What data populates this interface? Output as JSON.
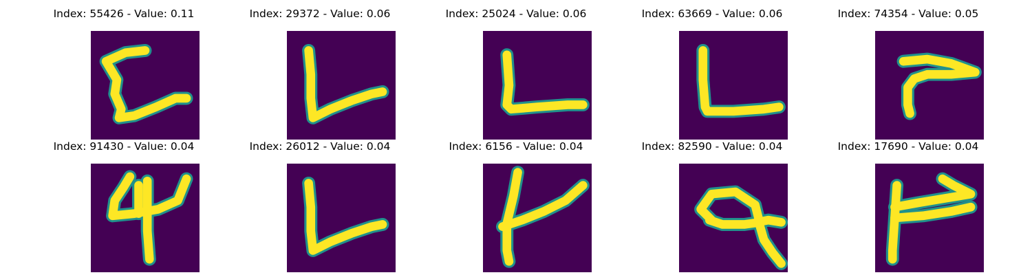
{
  "figure": {
    "background_color": "#ffffff",
    "image_background_color": "#440154",
    "stroke_edge_color": "#21918c",
    "stroke_color": "#fde725"
  },
  "chart_data": {
    "type": "image_grid",
    "grid": {
      "rows": 2,
      "cols": 5
    },
    "panels": [
      {
        "title": "Index: 55426 - Value: 0.11",
        "index": 55426,
        "value": 0.11,
        "glyph": "c-shape"
      },
      {
        "title": "Index: 29372 - Value: 0.06",
        "index": 29372,
        "value": 0.06,
        "glyph": "l-shape"
      },
      {
        "title": "Index: 25024 - Value: 0.06",
        "index": 25024,
        "value": 0.06,
        "glyph": "l-shape-thick"
      },
      {
        "title": "Index: 63669 - Value: 0.06",
        "index": 63669,
        "value": 0.06,
        "glyph": "l-shape-upright"
      },
      {
        "title": "Index: 74354 - Value: 0.05",
        "index": 74354,
        "value": 0.05,
        "glyph": "hook-shape"
      },
      {
        "title": "Index: 91430 - Value: 0.04",
        "index": 91430,
        "value": 0.04,
        "glyph": "digit-4-shape"
      },
      {
        "title": "Index: 26012 - Value: 0.04",
        "index": 26012,
        "value": 0.04,
        "glyph": "l-shape"
      },
      {
        "title": "Index: 6156 - Value: 0.04",
        "index": 6156,
        "value": 0.04,
        "glyph": "t-branch-shape"
      },
      {
        "title": "Index: 82590 - Value: 0.04",
        "index": 82590,
        "value": 0.04,
        "glyph": "loop-shape"
      },
      {
        "title": "Index: 17690 - Value: 0.04",
        "index": 17690,
        "value": 0.04,
        "glyph": "flag-shape"
      }
    ]
  }
}
